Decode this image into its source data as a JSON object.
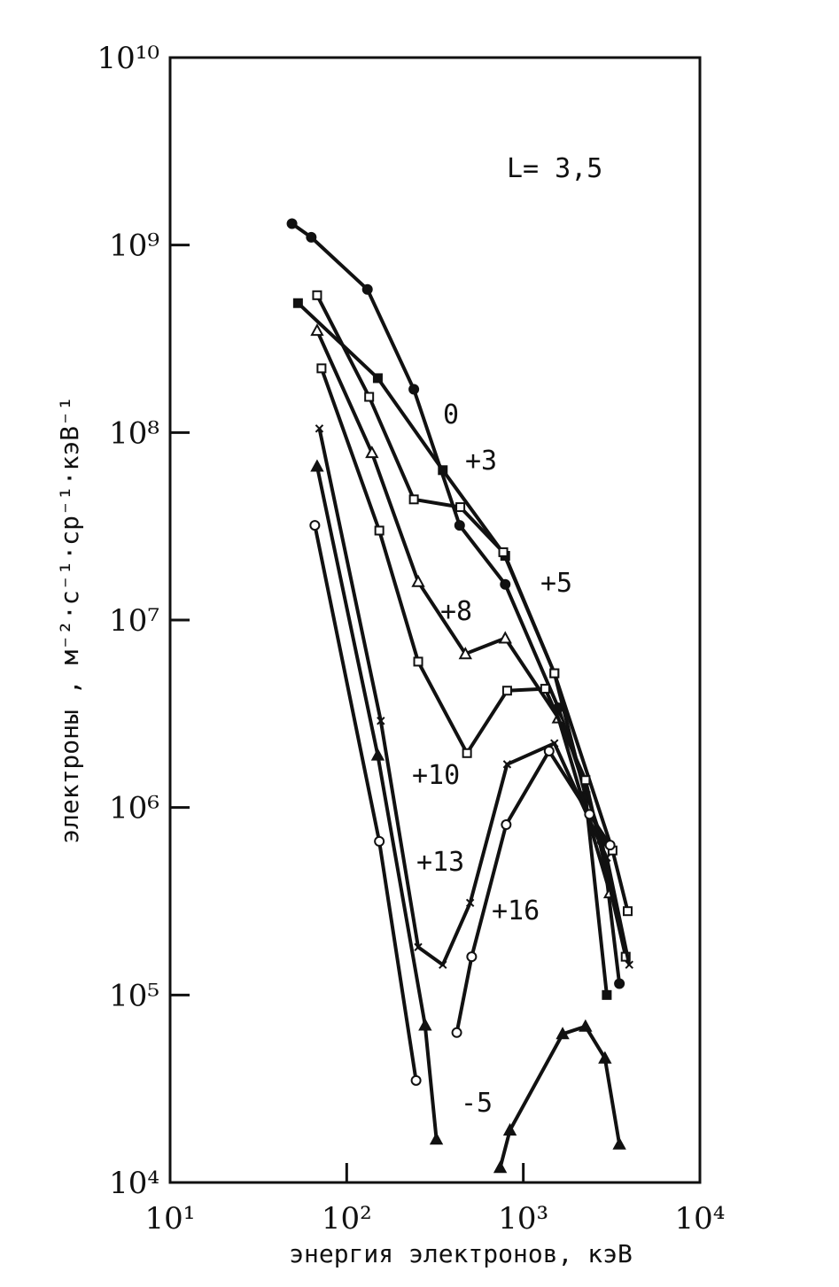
{
  "chart_data": {
    "type": "line",
    "x_label": "энергия электронов, кэВ",
    "y_label": "электроны , м⁻²·с⁻¹·ср⁻¹·кэВ⁻¹",
    "annotation": "L= 3,5",
    "xscale": "log",
    "yscale": "log",
    "xlim": [
      10,
      10000
    ],
    "ylim": [
      10000,
      10000000000
    ],
    "xticks": [
      {
        "value": 10,
        "label": "10¹"
      },
      {
        "value": 100,
        "label": "10²"
      },
      {
        "value": 1000,
        "label": "10³"
      },
      {
        "value": 10000,
        "label": "10⁴"
      }
    ],
    "yticks": [
      {
        "value": 10000,
        "label": "10⁴"
      },
      {
        "value": 100000,
        "label": "10⁵"
      },
      {
        "value": 1000000,
        "label": "10⁶"
      },
      {
        "value": 10000000,
        "label": "10⁷"
      },
      {
        "value": 100000000,
        "label": "10⁸"
      },
      {
        "value": 1000000000,
        "label": "10⁹"
      },
      {
        "value": 10000000000,
        "label": "10¹⁰"
      }
    ],
    "series": [
      {
        "name": "0",
        "color": "#111",
        "marker": "circle-filled",
        "x": [
          49,
          63,
          131,
          240,
          436,
          790,
          1580,
          2800,
          3500
        ],
        "values": [
          1300000000,
          1100000000,
          580000000,
          170000000,
          32000000,
          15500000,
          3400000,
          660000,
          115000
        ]
      },
      {
        "name": "+3",
        "color": "#111",
        "marker": "square-filled",
        "x": [
          53,
          150,
          350,
          790,
          1500,
          2250,
          2970
        ],
        "values": [
          490000000,
          195000000,
          63000000,
          22000000,
          5200000,
          1150000,
          100000
        ]
      },
      {
        "name": "+5",
        "color": "#111",
        "marker": "square-open",
        "x": [
          68,
          134,
          240,
          440,
          770,
          1500,
          3200,
          3900
        ],
        "values": [
          540000000,
          155000000,
          44000000,
          40000000,
          23000000,
          5200000,
          590000,
          280000
        ]
      },
      {
        "name": "+8",
        "color": "#111",
        "marker": "triangle-open",
        "x": [
          68,
          139,
          254,
          470,
          790,
          1580,
          3100
        ],
        "values": [
          350000000,
          78000000,
          16000000,
          6600000,
          8000000,
          3000000,
          350000
        ]
      },
      {
        "name": "+10",
        "color": "#111",
        "marker": "square-open",
        "x": [
          72,
          153,
          254,
          480,
          810,
          1330,
          2250,
          3800
        ],
        "values": [
          220000000,
          30000000,
          6000000,
          1950000,
          4200000,
          4300000,
          1400000,
          160000
        ]
      },
      {
        "name": "+13",
        "color": "#111",
        "marker": "cross",
        "x": [
          70,
          156,
          254,
          350,
          500,
          810,
          1500,
          2970,
          3980
        ],
        "values": [
          105000000,
          2900000,
          180000,
          145000,
          310000,
          1700000,
          2200000,
          540000,
          145000
        ]
      },
      {
        "name": "+16",
        "color": "#111",
        "marker": "circle-open",
        "x": [
          66,
          153,
          247,
          330,
          420,
          510,
          800,
          1400,
          2370,
          3100
        ],
        "values": [
          32000000,
          660000,
          35000,
          null,
          63000,
          160000,
          810000,
          2000000,
          920000,
          630000
        ]
      },
      {
        "name": "-5",
        "color": "#111",
        "marker": "triangle-filled",
        "x": [
          68,
          150,
          278,
          322,
          500,
          740,
          840,
          1670,
          2250,
          2900,
          3500
        ],
        "values": [
          66000000,
          1900000,
          69000,
          17000,
          null,
          12000,
          19000,
          62000,
          68000,
          46000,
          16000
        ]
      }
    ]
  }
}
